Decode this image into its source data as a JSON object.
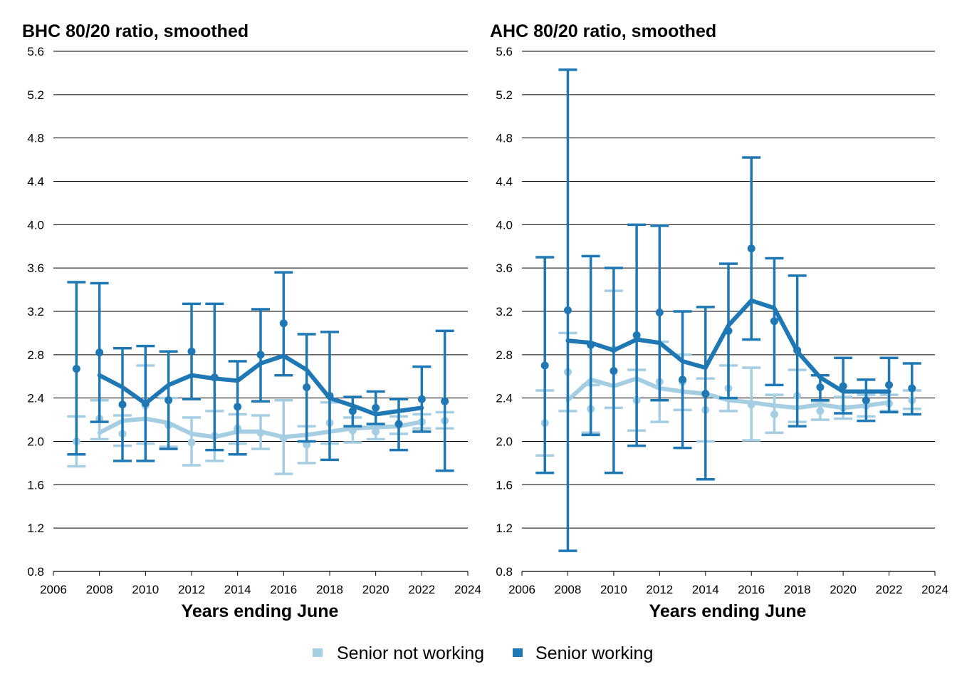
{
  "colors": {
    "senior_not_working": "#a6cee3",
    "senior_working": "#1f78b4",
    "gridline": "#000000"
  },
  "legend": {
    "position": "bottom-center",
    "items": [
      {
        "label": "Senior not working",
        "color": "#a6cee3"
      },
      {
        "label": "Senior working",
        "color": "#1f78b4"
      }
    ]
  },
  "chart_data": [
    {
      "type": "line",
      "title": "BHC 80/20 ratio, smoothed",
      "xlabel": "Years ending June",
      "ylabel": "",
      "xlim": [
        2006,
        2024
      ],
      "ylim": [
        0.8,
        5.6
      ],
      "x_ticks": [
        "2006",
        "2008",
        "2010",
        "2012",
        "2014",
        "2016",
        "2018",
        "2020",
        "2022",
        "2024"
      ],
      "y_ticks": [
        "0.8",
        "1.2",
        "1.6",
        "2.0",
        "2.4",
        "2.8",
        "3.2",
        "3.6",
        "4.0",
        "4.4",
        "4.8",
        "5.2",
        "5.6"
      ],
      "grid": "horizontal",
      "series": [
        {
          "name": "Senior not working",
          "color": "#a6cee3",
          "points": [
            {
              "x": 2007,
              "y": 2.0,
              "lo": 1.77,
              "hi": 2.23
            },
            {
              "x": 2008,
              "y": 2.21,
              "lo": 2.02,
              "hi": 2.38
            },
            {
              "x": 2009,
              "y": 2.07,
              "lo": 1.96,
              "hi": 2.24
            },
            {
              "x": 2010,
              "y": 2.33,
              "lo": 1.98,
              "hi": 2.7
            },
            {
              "x": 2011,
              "y": 2.15,
              "lo": 1.95,
              "hi": 2.4
            },
            {
              "x": 2012,
              "y": 1.99,
              "lo": 1.78,
              "hi": 2.22
            },
            {
              "x": 2013,
              "y": 2.05,
              "lo": 1.82,
              "hi": 2.28
            },
            {
              "x": 2014,
              "y": 2.12,
              "lo": 1.98,
              "hi": 2.25
            },
            {
              "x": 2015,
              "y": 2.08,
              "lo": 1.93,
              "hi": 2.24
            },
            {
              "x": 2016,
              "y": 2.03,
              "lo": 1.7,
              "hi": 2.38
            },
            {
              "x": 2017,
              "y": 1.97,
              "lo": 1.8,
              "hi": 2.14
            },
            {
              "x": 2018,
              "y": 2.17,
              "lo": 1.98,
              "hi": 2.36
            },
            {
              "x": 2019,
              "y": 2.1,
              "lo": 1.99,
              "hi": 2.22
            },
            {
              "x": 2020,
              "y": 2.09,
              "lo": 2.02,
              "hi": 2.16
            },
            {
              "x": 2021,
              "y": 2.15,
              "lo": 2.07,
              "hi": 2.23
            },
            {
              "x": 2022,
              "y": 2.18,
              "lo": 2.12,
              "hi": 2.25
            },
            {
              "x": 2023,
              "y": 2.19,
              "lo": 2.12,
              "hi": 2.27
            }
          ],
          "smoothed": [
            {
              "x": 2008,
              "y": 2.08
            },
            {
              "x": 2009,
              "y": 2.19
            },
            {
              "x": 2010,
              "y": 2.21
            },
            {
              "x": 2011,
              "y": 2.17
            },
            {
              "x": 2012,
              "y": 2.07
            },
            {
              "x": 2013,
              "y": 2.04
            },
            {
              "x": 2014,
              "y": 2.09
            },
            {
              "x": 2015,
              "y": 2.09
            },
            {
              "x": 2016,
              "y": 2.04
            },
            {
              "x": 2017,
              "y": 2.06
            },
            {
              "x": 2018,
              "y": 2.09
            },
            {
              "x": 2019,
              "y": 2.12
            },
            {
              "x": 2020,
              "y": 2.13
            },
            {
              "x": 2021,
              "y": 2.14
            },
            {
              "x": 2022,
              "y": 2.18
            }
          ]
        },
        {
          "name": "Senior working",
          "color": "#1f78b4",
          "points": [
            {
              "x": 2007,
              "y": 2.67,
              "lo": 1.88,
              "hi": 3.47
            },
            {
              "x": 2008,
              "y": 2.82,
              "lo": 2.18,
              "hi": 3.46
            },
            {
              "x": 2009,
              "y": 2.34,
              "lo": 1.82,
              "hi": 2.86
            },
            {
              "x": 2010,
              "y": 2.35,
              "lo": 1.82,
              "hi": 2.88
            },
            {
              "x": 2011,
              "y": 2.38,
              "lo": 1.93,
              "hi": 2.83
            },
            {
              "x": 2012,
              "y": 2.83,
              "lo": 2.39,
              "hi": 3.27
            },
            {
              "x": 2013,
              "y": 2.59,
              "lo": 1.92,
              "hi": 3.27
            },
            {
              "x": 2014,
              "y": 2.32,
              "lo": 1.88,
              "hi": 2.74
            },
            {
              "x": 2015,
              "y": 2.8,
              "lo": 2.37,
              "hi": 3.22
            },
            {
              "x": 2016,
              "y": 3.09,
              "lo": 2.61,
              "hi": 3.56
            },
            {
              "x": 2017,
              "y": 2.5,
              "lo": 2.0,
              "hi": 2.99
            },
            {
              "x": 2018,
              "y": 2.42,
              "lo": 1.83,
              "hi": 3.01
            },
            {
              "x": 2019,
              "y": 2.28,
              "lo": 2.14,
              "hi": 2.41
            },
            {
              "x": 2020,
              "y": 2.31,
              "lo": 2.16,
              "hi": 2.46
            },
            {
              "x": 2021,
              "y": 2.16,
              "lo": 1.92,
              "hi": 2.39
            },
            {
              "x": 2022,
              "y": 2.39,
              "lo": 2.09,
              "hi": 2.69
            },
            {
              "x": 2023,
              "y": 2.37,
              "lo": 1.73,
              "hi": 3.02
            }
          ],
          "smoothed": [
            {
              "x": 2008,
              "y": 2.61
            },
            {
              "x": 2009,
              "y": 2.5
            },
            {
              "x": 2010,
              "y": 2.35
            },
            {
              "x": 2011,
              "y": 2.52
            },
            {
              "x": 2012,
              "y": 2.61
            },
            {
              "x": 2013,
              "y": 2.58
            },
            {
              "x": 2014,
              "y": 2.56
            },
            {
              "x": 2015,
              "y": 2.72
            },
            {
              "x": 2016,
              "y": 2.79
            },
            {
              "x": 2017,
              "y": 2.66
            },
            {
              "x": 2018,
              "y": 2.4
            },
            {
              "x": 2019,
              "y": 2.33
            },
            {
              "x": 2020,
              "y": 2.25
            },
            {
              "x": 2021,
              "y": 2.28
            },
            {
              "x": 2022,
              "y": 2.31
            }
          ]
        }
      ]
    },
    {
      "type": "line",
      "title": "AHC 80/20 ratio, smoothed",
      "xlabel": "Years ending June",
      "ylabel": "",
      "xlim": [
        2006,
        2024
      ],
      "ylim": [
        0.8,
        5.6
      ],
      "x_ticks": [
        "2006",
        "2008",
        "2010",
        "2012",
        "2014",
        "2016",
        "2018",
        "2020",
        "2022",
        "2024"
      ],
      "y_ticks": [
        "0.8",
        "1.2",
        "1.6",
        "2.0",
        "2.4",
        "2.8",
        "3.2",
        "3.6",
        "4.0",
        "4.4",
        "4.8",
        "5.2",
        "5.6"
      ],
      "grid": "horizontal",
      "series": [
        {
          "name": "Senior not working",
          "color": "#a6cee3",
          "points": [
            {
              "x": 2007,
              "y": 2.17,
              "lo": 1.87,
              "hi": 2.47
            },
            {
              "x": 2008,
              "y": 2.64,
              "lo": 2.28,
              "hi": 3.0
            },
            {
              "x": 2009,
              "y": 2.3,
              "lo": 2.08,
              "hi": 2.52
            },
            {
              "x": 2010,
              "y": 2.85,
              "lo": 2.31,
              "hi": 3.39
            },
            {
              "x": 2011,
              "y": 2.38,
              "lo": 2.1,
              "hi": 2.66
            },
            {
              "x": 2012,
              "y": 2.55,
              "lo": 2.18,
              "hi": 2.92
            },
            {
              "x": 2013,
              "y": 2.55,
              "lo": 2.29,
              "hi": 2.8
            },
            {
              "x": 2014,
              "y": 2.29,
              "lo": 2.0,
              "hi": 2.58
            },
            {
              "x": 2015,
              "y": 2.49,
              "lo": 2.28,
              "hi": 2.7
            },
            {
              "x": 2016,
              "y": 2.34,
              "lo": 2.01,
              "hi": 2.68
            },
            {
              "x": 2017,
              "y": 2.25,
              "lo": 2.08,
              "hi": 2.43
            },
            {
              "x": 2018,
              "y": 2.42,
              "lo": 2.18,
              "hi": 2.66
            },
            {
              "x": 2019,
              "y": 2.28,
              "lo": 2.2,
              "hi": 2.37
            },
            {
              "x": 2020,
              "y": 2.31,
              "lo": 2.21,
              "hi": 2.41
            },
            {
              "x": 2021,
              "y": 2.33,
              "lo": 2.23,
              "hi": 2.43
            },
            {
              "x": 2022,
              "y": 2.35,
              "lo": 2.28,
              "hi": 2.43
            },
            {
              "x": 2023,
              "y": 2.38,
              "lo": 2.3,
              "hi": 2.47
            }
          ],
          "smoothed": [
            {
              "x": 2008,
              "y": 2.38
            },
            {
              "x": 2009,
              "y": 2.57
            },
            {
              "x": 2010,
              "y": 2.51
            },
            {
              "x": 2011,
              "y": 2.58
            },
            {
              "x": 2012,
              "y": 2.49
            },
            {
              "x": 2013,
              "y": 2.46
            },
            {
              "x": 2014,
              "y": 2.44
            },
            {
              "x": 2015,
              "y": 2.38
            },
            {
              "x": 2016,
              "y": 2.36
            },
            {
              "x": 2017,
              "y": 2.33
            },
            {
              "x": 2018,
              "y": 2.31
            },
            {
              "x": 2019,
              "y": 2.34
            },
            {
              "x": 2020,
              "y": 2.31
            },
            {
              "x": 2021,
              "y": 2.33
            },
            {
              "x": 2022,
              "y": 2.36
            }
          ]
        },
        {
          "name": "Senior working",
          "color": "#1f78b4",
          "points": [
            {
              "x": 2007,
              "y": 2.7,
              "lo": 1.71,
              "hi": 3.7
            },
            {
              "x": 2008,
              "y": 3.21,
              "lo": 0.99,
              "hi": 5.43
            },
            {
              "x": 2009,
              "y": 2.89,
              "lo": 2.06,
              "hi": 3.71
            },
            {
              "x": 2010,
              "y": 2.65,
              "lo": 1.71,
              "hi": 3.6
            },
            {
              "x": 2011,
              "y": 2.98,
              "lo": 1.96,
              "hi": 4.0
            },
            {
              "x": 2012,
              "y": 3.19,
              "lo": 2.38,
              "hi": 3.99
            },
            {
              "x": 2013,
              "y": 2.57,
              "lo": 1.94,
              "hi": 3.2
            },
            {
              "x": 2014,
              "y": 2.44,
              "lo": 1.65,
              "hi": 3.24
            },
            {
              "x": 2015,
              "y": 3.02,
              "lo": 2.4,
              "hi": 3.64
            },
            {
              "x": 2016,
              "y": 3.78,
              "lo": 2.94,
              "hi": 4.62
            },
            {
              "x": 2017,
              "y": 3.11,
              "lo": 2.52,
              "hi": 3.69
            },
            {
              "x": 2018,
              "y": 2.84,
              "lo": 2.14,
              "hi": 3.53
            },
            {
              "x": 2019,
              "y": 2.5,
              "lo": 2.38,
              "hi": 2.61
            },
            {
              "x": 2020,
              "y": 2.51,
              "lo": 2.26,
              "hi": 2.77
            },
            {
              "x": 2021,
              "y": 2.38,
              "lo": 2.19,
              "hi": 2.57
            },
            {
              "x": 2022,
              "y": 2.52,
              "lo": 2.27,
              "hi": 2.77
            },
            {
              "x": 2023,
              "y": 2.49,
              "lo": 2.25,
              "hi": 2.72
            }
          ],
          "smoothed": [
            {
              "x": 2008,
              "y": 2.93
            },
            {
              "x": 2009,
              "y": 2.91
            },
            {
              "x": 2010,
              "y": 2.84
            },
            {
              "x": 2011,
              "y": 2.94
            },
            {
              "x": 2012,
              "y": 2.91
            },
            {
              "x": 2013,
              "y": 2.74
            },
            {
              "x": 2014,
              "y": 2.68
            },
            {
              "x": 2015,
              "y": 3.07
            },
            {
              "x": 2016,
              "y": 3.3
            },
            {
              "x": 2017,
              "y": 3.23
            },
            {
              "x": 2018,
              "y": 2.83
            },
            {
              "x": 2019,
              "y": 2.59
            },
            {
              "x": 2020,
              "y": 2.46
            },
            {
              "x": 2021,
              "y": 2.46
            },
            {
              "x": 2022,
              "y": 2.46
            }
          ]
        }
      ]
    }
  ]
}
